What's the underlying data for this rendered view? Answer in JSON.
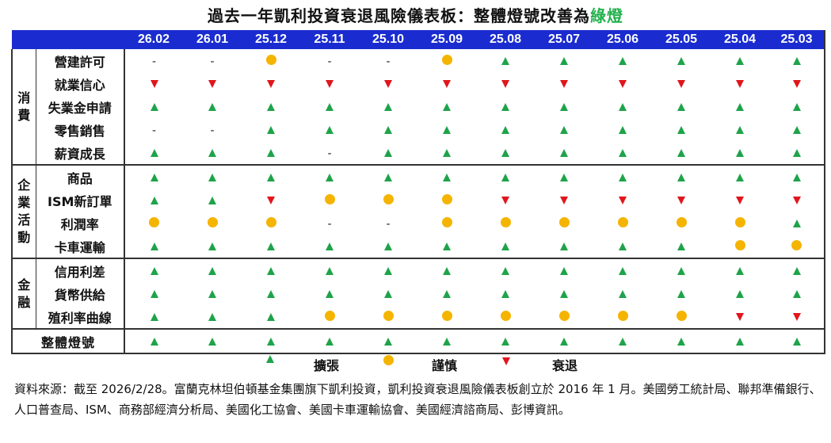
{
  "title": {
    "prefix": "過去一年凱利投資衰退風險儀表板：整體燈號改善為",
    "highlight": "綠燈"
  },
  "months": [
    "26.02",
    "26.01",
    "25.12",
    "25.11",
    "25.10",
    "25.09",
    "25.08",
    "25.07",
    "25.06",
    "25.05",
    "25.04",
    "25.03"
  ],
  "categories": [
    {
      "name": "消費",
      "rows": [
        {
          "label": "營建許可",
          "values": [
            "-",
            "-",
            "caution",
            "-",
            "-",
            "caution",
            "up",
            "up",
            "up",
            "up",
            "up",
            "up"
          ]
        },
        {
          "label": "就業信心",
          "values": [
            "down",
            "down",
            "down",
            "down",
            "down",
            "down",
            "down",
            "down",
            "down",
            "down",
            "down",
            "down"
          ]
        },
        {
          "label": "失業金申請",
          "values": [
            "up",
            "up",
            "up",
            "up",
            "up",
            "up",
            "up",
            "up",
            "up",
            "up",
            "up",
            "up"
          ]
        },
        {
          "label": "零售銷售",
          "values": [
            "-",
            "-",
            "up",
            "up",
            "up",
            "up",
            "up",
            "up",
            "up",
            "up",
            "up",
            "up"
          ]
        },
        {
          "label": "薪資成長",
          "values": [
            "up",
            "up",
            "up",
            "-",
            "up",
            "up",
            "up",
            "up",
            "up",
            "up",
            "up",
            "up"
          ]
        }
      ]
    },
    {
      "name": "企業活動",
      "rows": [
        {
          "label": "商品",
          "values": [
            "up",
            "up",
            "up",
            "up",
            "up",
            "up",
            "up",
            "up",
            "up",
            "up",
            "up",
            "up"
          ]
        },
        {
          "label": "ISM新訂單",
          "values": [
            "up",
            "up",
            "down",
            "caution",
            "caution",
            "caution",
            "down",
            "down",
            "down",
            "down",
            "down",
            "down"
          ]
        },
        {
          "label": "利潤率",
          "values": [
            "caution",
            "caution",
            "caution",
            "-",
            "-",
            "caution",
            "caution",
            "caution",
            "caution",
            "caution",
            "caution",
            "up"
          ]
        },
        {
          "label": "卡車運輸",
          "values": [
            "up",
            "up",
            "up",
            "up",
            "up",
            "up",
            "up",
            "up",
            "up",
            "up",
            "caution",
            "caution"
          ]
        }
      ]
    },
    {
      "name": "金融",
      "rows": [
        {
          "label": "信用利差",
          "values": [
            "up",
            "up",
            "up",
            "up",
            "up",
            "up",
            "up",
            "up",
            "up",
            "up",
            "up",
            "up"
          ]
        },
        {
          "label": "貨幣供給",
          "values": [
            "up",
            "up",
            "up",
            "up",
            "up",
            "up",
            "up",
            "up",
            "up",
            "up",
            "up",
            "up"
          ]
        },
        {
          "label": "殖利率曲線",
          "values": [
            "up",
            "up",
            "up",
            "caution",
            "caution",
            "caution",
            "caution",
            "caution",
            "caution",
            "caution",
            "down",
            "down"
          ]
        }
      ]
    }
  ],
  "total": {
    "label": "整體燈號",
    "values": [
      "up",
      "up",
      "up",
      "up",
      "up",
      "up",
      "up",
      "up",
      "up",
      "up",
      "up",
      "up"
    ]
  },
  "legend": {
    "expansion": "擴張",
    "caution": "謹慎",
    "recession": "衰退"
  },
  "source": "資料來源：截至 2026/2/28。富蘭克林坦伯頓基金集團旗下凱利投資，凱利投資衰退風險儀表板創立於 2016 年 1 月。美國勞工統計局、聯邦準備銀行、人口普查局、ISM、商務部經濟分析局、美國化工協會、美國卡車運輸協會、美國經濟諮商局、彭博資訊。",
  "colors": {
    "header_bg": "#1a2ccf",
    "up": "#1fa34a",
    "down": "#e0161c",
    "caution": "#f4b400",
    "highlight": "#22b14c"
  }
}
